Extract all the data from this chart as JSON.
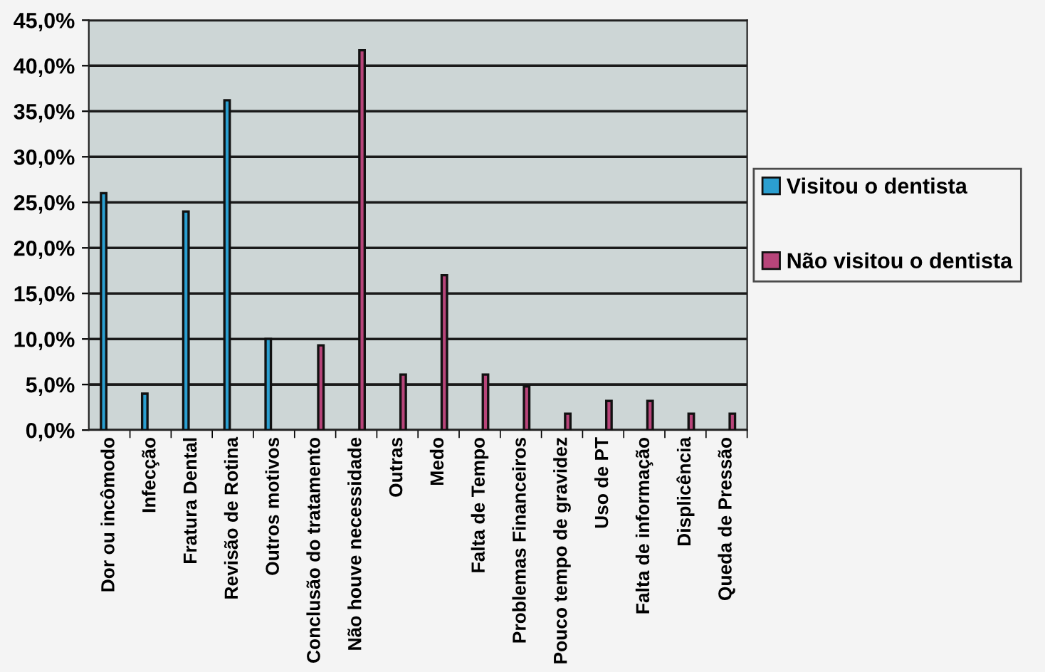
{
  "chart_data": {
    "type": "bar",
    "categories": [
      "Dor ou incômodo",
      "Infecção",
      "Fratura Dental",
      "Revisão de Rotina",
      "Outros motivos",
      "Conclusão do tratamento",
      "Não houve necessidade",
      "Outras",
      "Medo",
      "Falta de Tempo",
      "Problemas Financeiros",
      "Pouco tempo de gravidez",
      "Uso de PT",
      "Falta de informação",
      "Displicência",
      "Queda de Pressão"
    ],
    "series": [
      {
        "name": "Visitou o dentista",
        "color": "#2b9fd0",
        "values": [
          26.0,
          4.0,
          24.0,
          36.2,
          10.0,
          null,
          null,
          null,
          null,
          null,
          null,
          null,
          null,
          null,
          null,
          null
        ]
      },
      {
        "name": "Não visitou o dentista",
        "color": "#b8457a",
        "values": [
          null,
          null,
          null,
          null,
          null,
          9.3,
          41.7,
          6.1,
          17.0,
          6.1,
          4.8,
          1.8,
          3.2,
          3.2,
          1.8,
          1.8
        ]
      }
    ],
    "ylim": [
      0,
      45
    ],
    "yticks": [
      {
        "value": 0,
        "label": "0,0%"
      },
      {
        "value": 5,
        "label": "5,0%"
      },
      {
        "value": 10,
        "label": "10,0%"
      },
      {
        "value": 15,
        "label": "15,0%"
      },
      {
        "value": 20,
        "label": "20,0%"
      },
      {
        "value": 25,
        "label": "25,0%"
      },
      {
        "value": 30,
        "label": "30,0%"
      },
      {
        "value": 35,
        "label": "35,0%"
      },
      {
        "value": 40,
        "label": "40,0%"
      },
      {
        "value": 45,
        "label": "45,0%"
      }
    ],
    "grid": "y",
    "legend": "right"
  }
}
